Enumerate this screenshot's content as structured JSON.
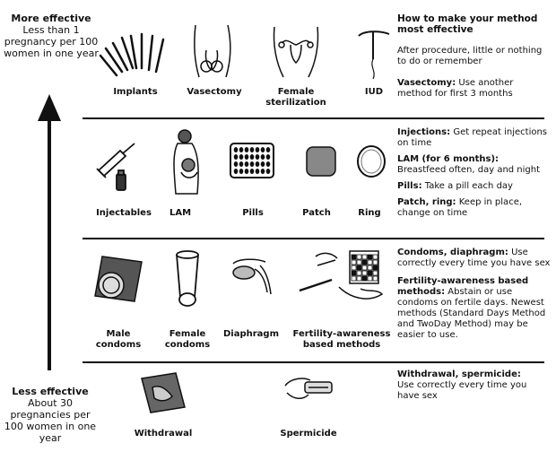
{
  "axis": {
    "top_title": "More effective",
    "top_desc": "Less than 1 pregnancy per 100 women in one year",
    "bottom_title": "Less effective",
    "bottom_desc": "About 30 pregnancies per 100 women in one year"
  },
  "tiers": [
    {
      "methods": [
        "Implants",
        "Vasectomy",
        "Female sterilization",
        "IUD"
      ],
      "notes": [
        {
          "head": "How to make your method most effective",
          "text": ""
        },
        {
          "head": "",
          "text": "After procedure, little or nothing to do or remember"
        },
        {
          "head": "Vasectomy:",
          "text": "Use another method for first 3 months"
        }
      ]
    },
    {
      "methods": [
        "Injectables",
        "LAM",
        "Pills",
        "Patch",
        "Ring"
      ],
      "notes": [
        {
          "head": "Injections:",
          "text": "Get repeat injections on time"
        },
        {
          "head": "LAM (for 6 months):",
          "text": "Breastfeed often, day and night"
        },
        {
          "head": "Pills:",
          "text": "Take a pill each day"
        },
        {
          "head": "Patch, ring:",
          "text": "Keep in place, change on time"
        }
      ]
    },
    {
      "methods": [
        "Male condoms",
        "Female condoms",
        "Diaphragm",
        "Fertility-awareness based methods"
      ],
      "notes": [
        {
          "head": "Condoms, diaphragm:",
          "text": "Use correctly every time you have sex"
        },
        {
          "head": "Fertility-awareness based methods:",
          "text": "Abstain or use condoms on fertile days. Newest methods (Standard Days Method and TwoDay Method) may be easier to use."
        }
      ]
    },
    {
      "methods": [
        "Withdrawal",
        "Spermicide"
      ],
      "notes": [
        {
          "head": "Withdrawal, spermicide:",
          "text": "Use correctly every time you have sex"
        }
      ]
    }
  ]
}
